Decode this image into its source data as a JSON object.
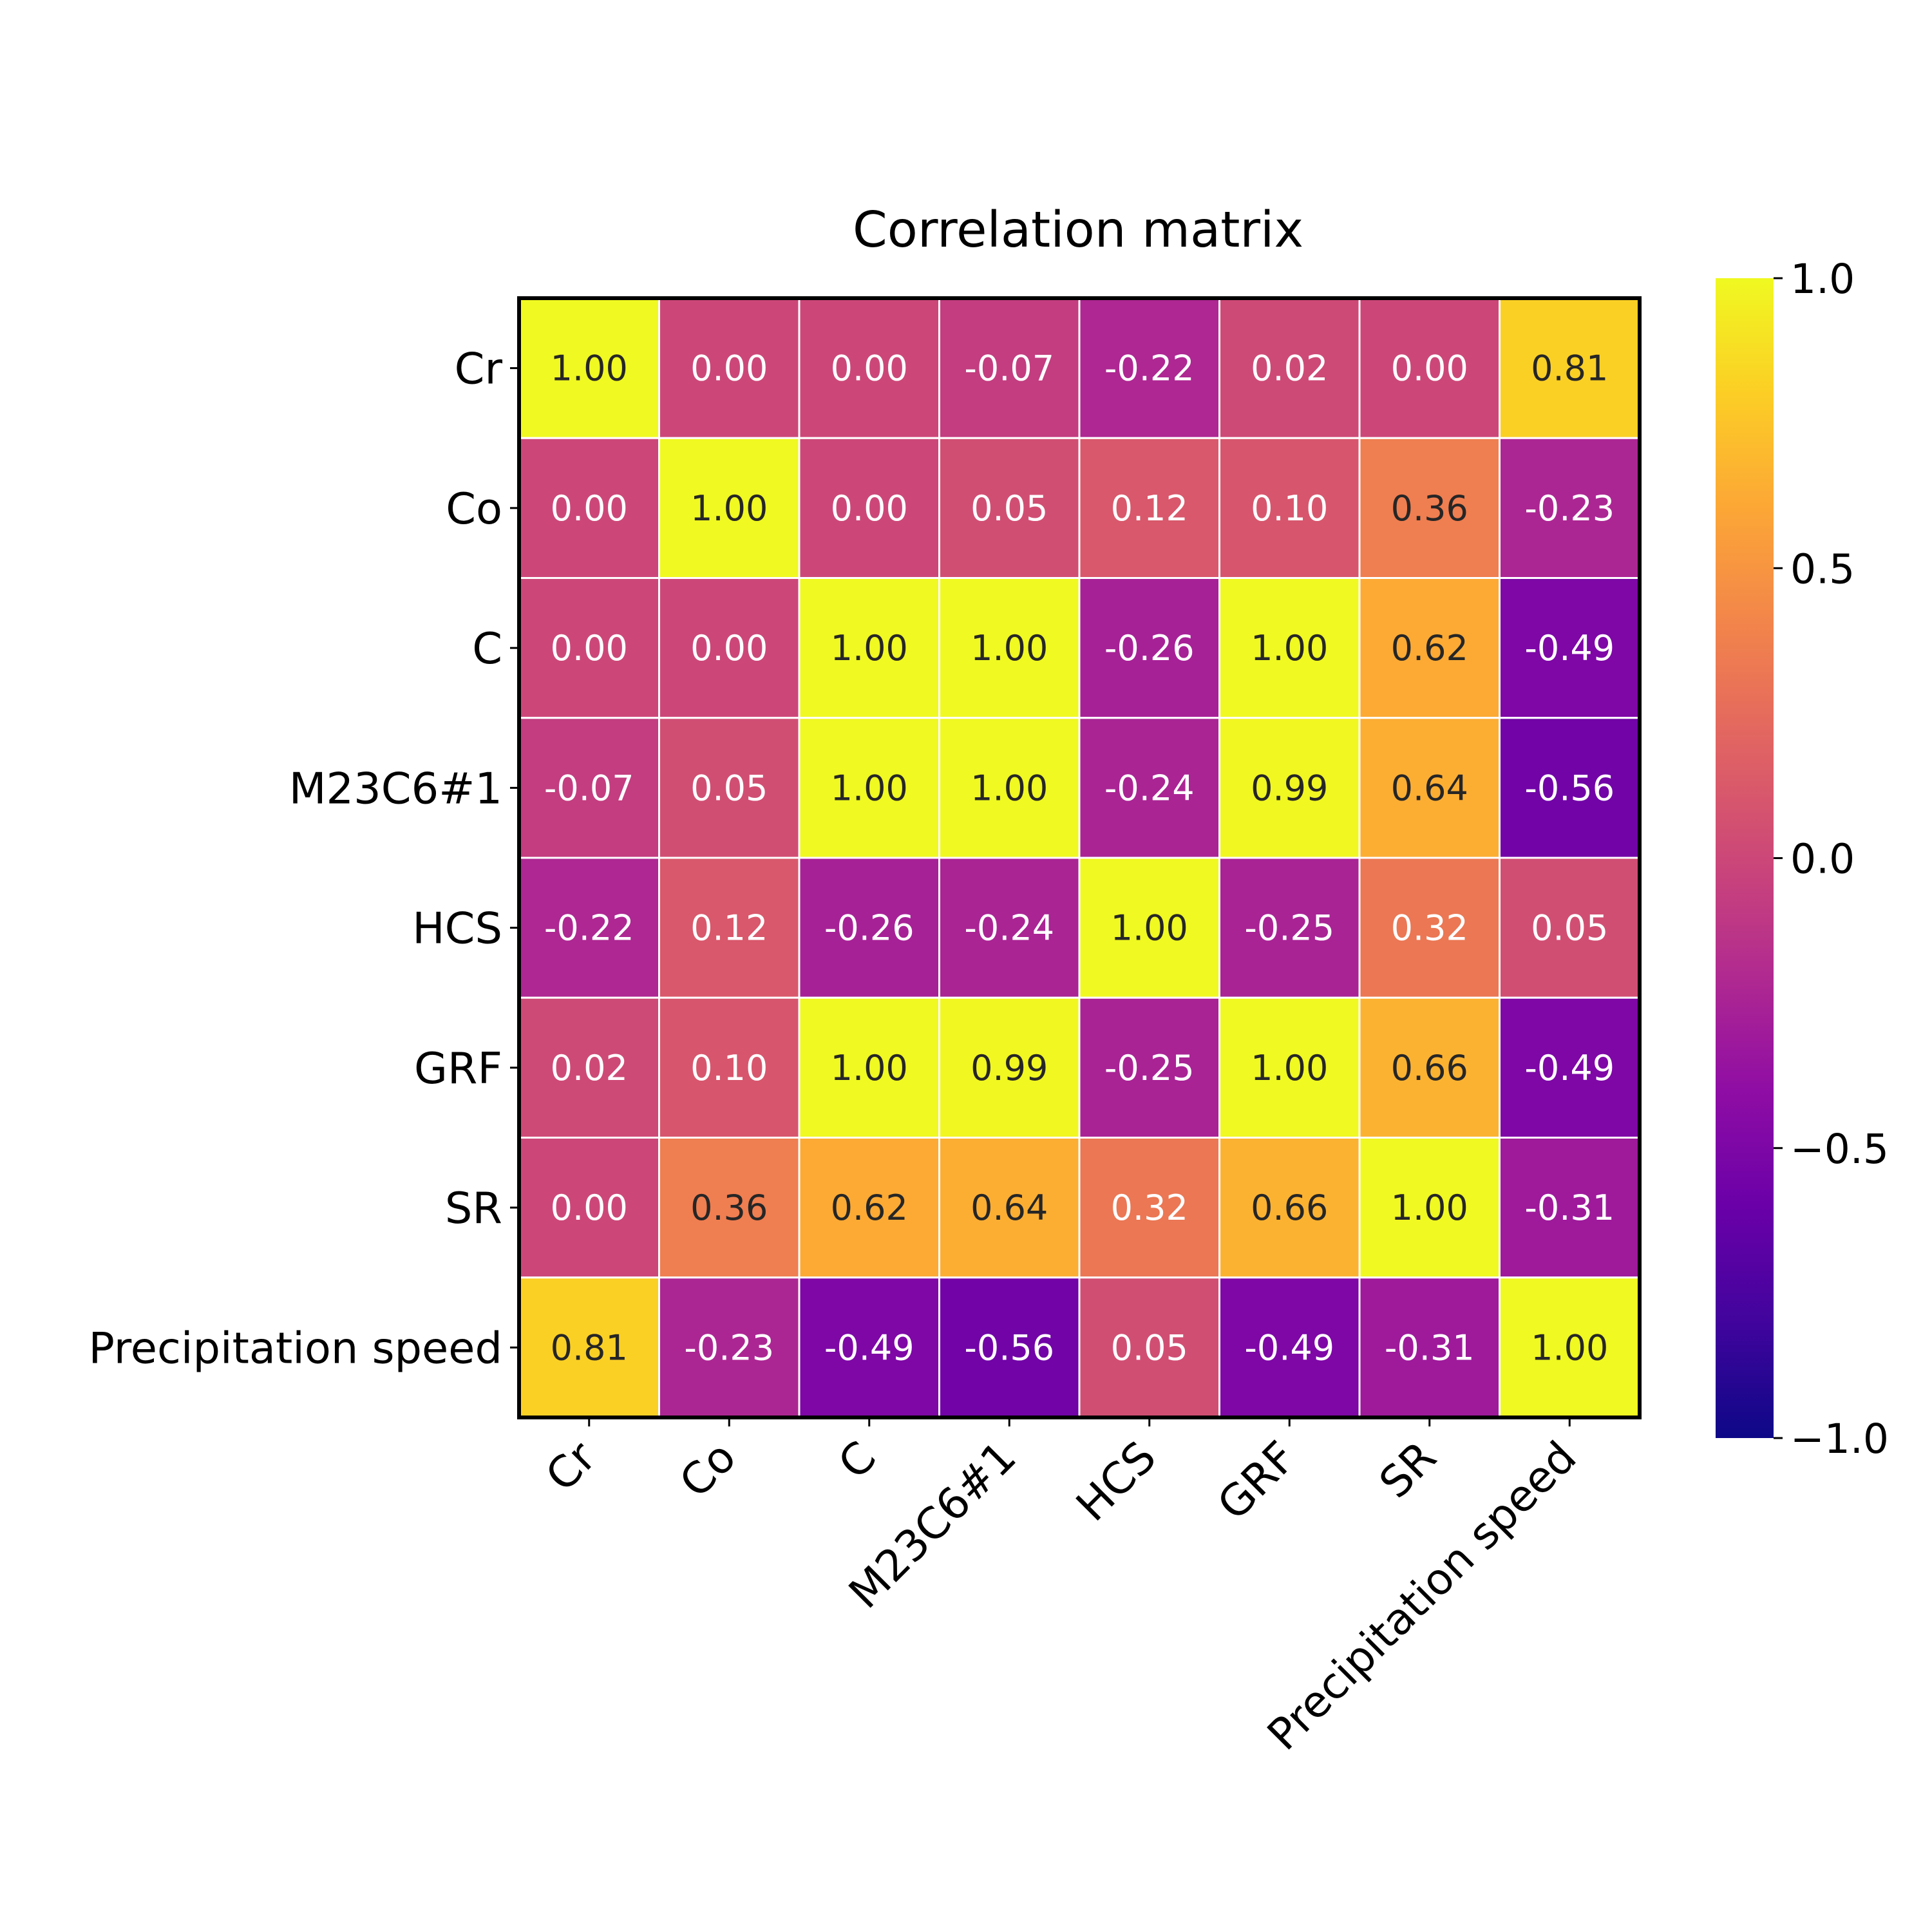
{
  "chart_data": {
    "type": "heatmap",
    "title": "Correlation matrix",
    "xlabel": "",
    "ylabel": "",
    "row_labels": [
      "Cr",
      "Co",
      "C",
      "M23C6#1",
      "HCS",
      "GRF",
      "SR",
      "Precipitation speed"
    ],
    "col_labels": [
      "Cr",
      "Co",
      "C",
      "M23C6#1",
      "HCS",
      "GRF",
      "SR",
      "Precipitation speed"
    ],
    "values": [
      [
        1.0,
        0.0,
        0.0,
        -0.07,
        -0.22,
        0.02,
        0.0,
        0.81
      ],
      [
        0.0,
        1.0,
        0.0,
        0.05,
        0.12,
        0.1,
        0.36,
        -0.23
      ],
      [
        0.0,
        0.0,
        1.0,
        1.0,
        -0.26,
        1.0,
        0.62,
        -0.49
      ],
      [
        -0.07,
        0.05,
        1.0,
        1.0,
        -0.24,
        0.99,
        0.64,
        -0.56
      ],
      [
        -0.22,
        0.12,
        -0.26,
        -0.24,
        1.0,
        -0.25,
        0.32,
        0.05
      ],
      [
        0.02,
        0.1,
        1.0,
        0.99,
        -0.25,
        1.0,
        0.66,
        -0.49
      ],
      [
        0.0,
        0.36,
        0.62,
        0.64,
        0.32,
        0.66,
        1.0,
        -0.31
      ],
      [
        0.81,
        -0.23,
        -0.49,
        -0.56,
        0.05,
        -0.49,
        -0.31,
        1.0
      ]
    ],
    "value_format": "2 decimals",
    "colormap": "plasma",
    "vmin": -1.0,
    "vmax": 1.0,
    "colorbar": {
      "position": "right",
      "ticks": [
        1.0,
        0.5,
        0.0,
        -0.5,
        -1.0
      ],
      "tick_labels": [
        "1.0",
        "0.5",
        "0.0",
        "−0.5",
        "−1.0"
      ]
    },
    "grid": false,
    "cell_border_color": "#ffffff",
    "annotation_dark_text_color": "#262626",
    "annotation_light_text_color": "#ffffff"
  }
}
